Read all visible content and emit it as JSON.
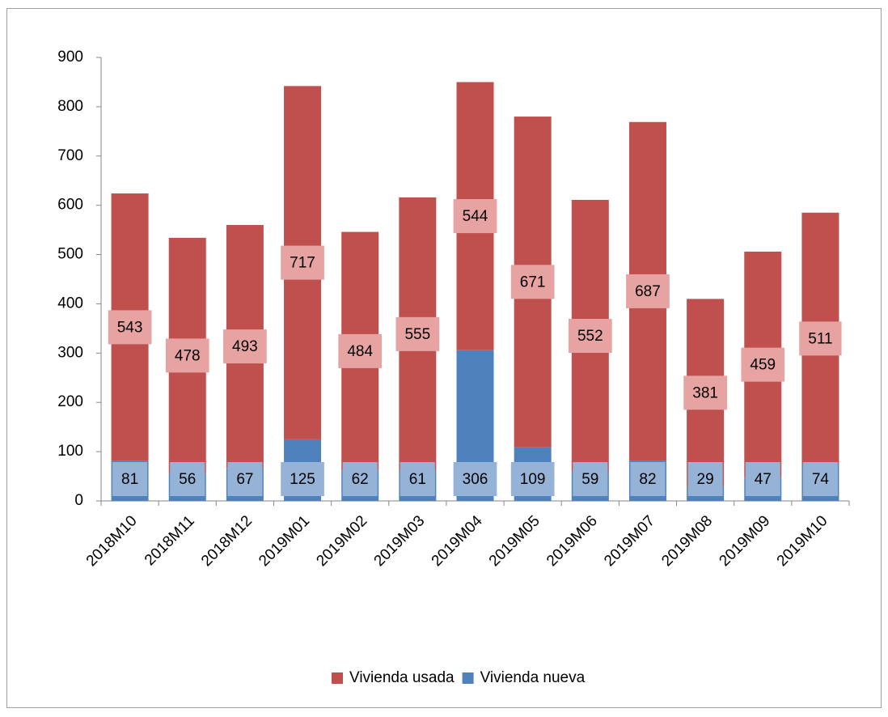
{
  "chart_data": {
    "type": "stacked_bar",
    "categories": [
      "2018M10",
      "2018M11",
      "2018M12",
      "2019M01",
      "2019M02",
      "2019M03",
      "2019M04",
      "2019M05",
      "2019M06",
      "2019M07",
      "2019M08",
      "2019M09",
      "2019M10"
    ],
    "series": [
      {
        "name": "Vivienda usada",
        "color": "#c0504d",
        "label_color": "#e6a3a1",
        "values": [
          543,
          478,
          493,
          717,
          484,
          555,
          544,
          671,
          552,
          687,
          381,
          459,
          511
        ]
      },
      {
        "name": "Vivienda nueva",
        "color": "#4f81bd",
        "label_color": "#95b3d7",
        "values": [
          81,
          56,
          67,
          125,
          62,
          61,
          306,
          109,
          59,
          82,
          29,
          47,
          74
        ]
      }
    ],
    "ylim": [
      0,
      900
    ],
    "yticks": [
      0,
      100,
      200,
      300,
      400,
      500,
      600,
      700,
      800,
      900
    ],
    "grid": false,
    "legend": "bottom"
  }
}
